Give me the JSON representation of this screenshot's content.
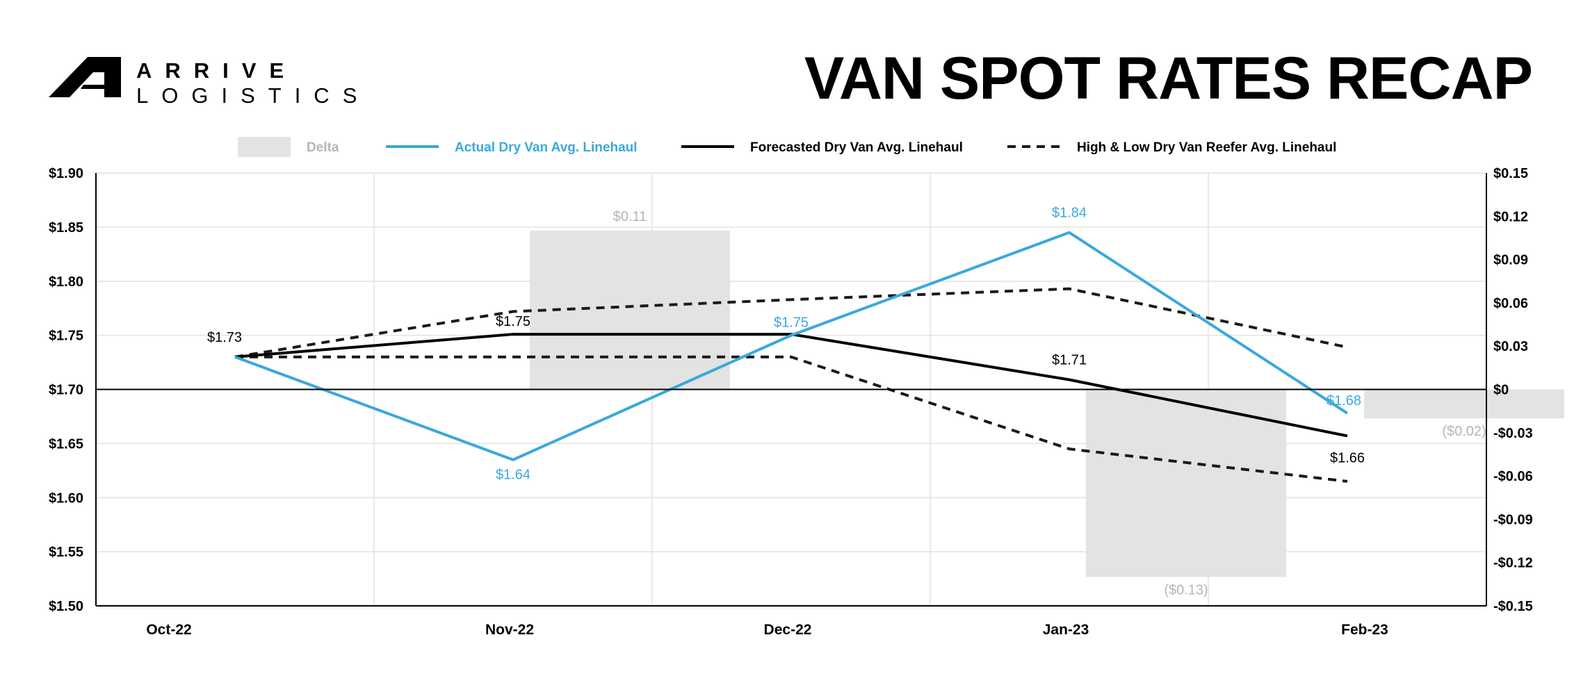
{
  "header": {
    "brand_line1": "ARRIVE",
    "brand_line2": "LOGISTICS",
    "title": "VAN SPOT RATES RECAP"
  },
  "colors": {
    "actual": "#3aa8dc",
    "forecast": "#000000",
    "highlow": "#1a1a1a",
    "delta_fill": "#e3e3e3",
    "delta_text": "#b5b5b5",
    "grid": "#e2e2e2"
  },
  "chart_data": {
    "type": "line",
    "legend_position": "top",
    "grid": true,
    "categories": [
      "Oct-22",
      "Nov-22",
      "Dec-22",
      "Jan-23",
      "Feb-23"
    ],
    "y_left": {
      "range": [
        1.5,
        1.9
      ],
      "ticks": [
        1.9,
        1.85,
        1.8,
        1.75,
        1.7,
        1.65,
        1.6,
        1.55,
        1.5
      ],
      "tick_labels": [
        "$1.90",
        "$1.85",
        "$1.80",
        "$1.75",
        "$1.70",
        "$1.65",
        "$1.60",
        "$1.55",
        "$1.50"
      ]
    },
    "y_right": {
      "range": [
        -0.15,
        0.15
      ],
      "ticks": [
        0.15,
        0.12,
        0.09,
        0.06,
        0.03,
        0,
        -0.03,
        -0.06,
        -0.09,
        -0.12,
        -0.15
      ],
      "tick_labels": [
        "$0.15",
        "$0.12",
        "$0.09",
        "$0.06",
        "$0.03",
        "$0",
        "-$0.03",
        "-$0.06",
        "-$0.09",
        "-$0.12",
        "-$0.15"
      ]
    },
    "series": [
      {
        "key": "delta",
        "name": "Delta",
        "type": "bar",
        "axis": "right",
        "x": [
          1.0,
          3.0,
          4.0
        ],
        "values": [
          0.11,
          -0.13,
          -0.02
        ],
        "labels": [
          "$0.11",
          "($0.13)",
          "($0.02)"
        ]
      },
      {
        "key": "actual",
        "name": "Actual Dry Van Avg. Linehaul",
        "type": "line",
        "axis": "left",
        "x": [
          0,
          1,
          2,
          3,
          4
        ],
        "values": [
          1.73,
          1.635,
          1.75,
          1.845,
          1.678
        ],
        "labels": [
          "",
          "$1.64",
          "$1.75",
          "$1.84",
          "$1.68"
        ]
      },
      {
        "key": "forecast",
        "name": "Forecasted Dry Van Avg. Linehaul",
        "type": "line",
        "axis": "left",
        "x": [
          0,
          1,
          2,
          3,
          4
        ],
        "values": [
          1.73,
          1.751,
          1.751,
          1.709,
          1.657
        ],
        "labels": [
          "$1.73",
          "$1.75",
          "",
          "$1.71",
          "$1.66"
        ]
      },
      {
        "key": "high",
        "name": "High & Low Dry Van Reefer Avg. Linehaul",
        "type": "line",
        "axis": "left",
        "x": [
          0,
          1,
          2,
          3,
          4
        ],
        "values": [
          1.73,
          1.772,
          1.783,
          1.793,
          1.739
        ]
      },
      {
        "key": "low",
        "name": "",
        "type": "line",
        "axis": "left",
        "x": [
          0,
          1,
          2,
          3,
          4
        ],
        "values": [
          1.73,
          1.73,
          1.73,
          1.645,
          1.615
        ]
      }
    ]
  }
}
